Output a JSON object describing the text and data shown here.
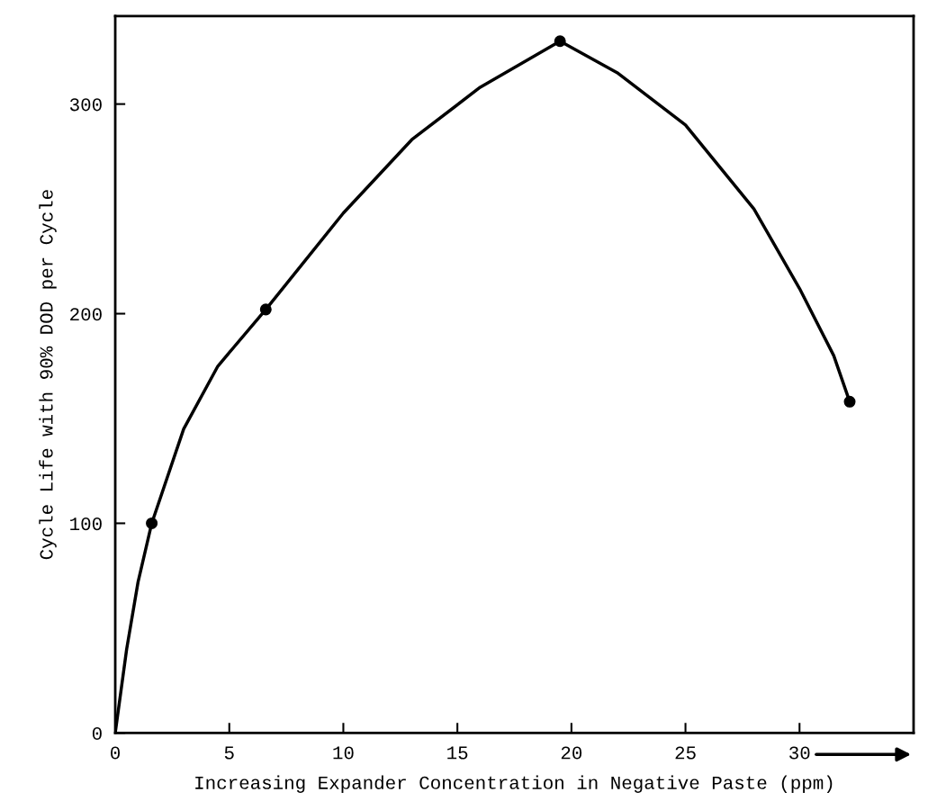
{
  "chart_data": {
    "type": "line",
    "xlabel": "Increasing Expander Concentration in Negative Paste (ppm)",
    "ylabel": "Cycle Life with 90% DOD per Cycle",
    "xlim": [
      0,
      35
    ],
    "ylim": [
      0,
      342
    ],
    "xticks": [
      0,
      5,
      10,
      15,
      20,
      25,
      30
    ],
    "yticks": [
      0,
      100,
      200,
      300
    ],
    "grid": false,
    "legend": false,
    "series": [
      {
        "color": "#000000",
        "marker": "none",
        "x": [
          0,
          0.5,
          1,
          1.6,
          3,
          4.5,
          6.6,
          10,
          13,
          16,
          19.5,
          22,
          25,
          28,
          30,
          31.5,
          32.2
        ],
        "values": [
          0,
          40,
          72,
          100,
          145,
          175,
          202,
          248,
          283,
          308,
          330,
          315,
          290,
          250,
          212,
          180,
          158
        ]
      },
      {
        "type": "scatter",
        "color": "#000000",
        "marker": "circle",
        "x": [
          1.6,
          6.6,
          19.5,
          32.2
        ],
        "values": [
          100,
          202,
          330,
          158
        ]
      }
    ]
  }
}
